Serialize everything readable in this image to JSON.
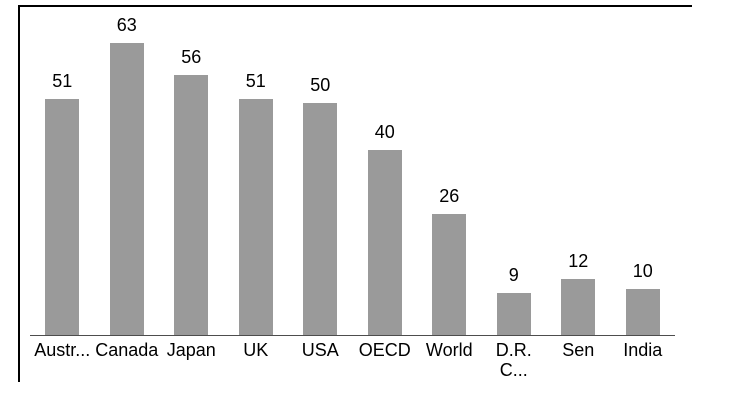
{
  "chart_data": {
    "type": "bar",
    "categories": [
      "Austr...",
      "Canada",
      "Japan",
      "UK",
      "USA",
      "OECD",
      "World",
      "D.R.\nC...",
      "Sen",
      "India"
    ],
    "values": [
      51,
      63,
      56,
      51,
      50,
      40,
      26,
      9,
      12,
      10
    ],
    "data_labels": [
      51,
      63,
      56,
      51,
      50,
      40,
      26,
      9,
      12,
      10
    ],
    "title": "",
    "xlabel": "",
    "ylabel": "",
    "ylim": [
      0,
      71
    ],
    "grid": false,
    "legend": null,
    "bar_color": "#9a9a9a",
    "axis_line_color": "#4d4d4d",
    "frame_border_color": "#000000",
    "label_color": "#000000"
  }
}
